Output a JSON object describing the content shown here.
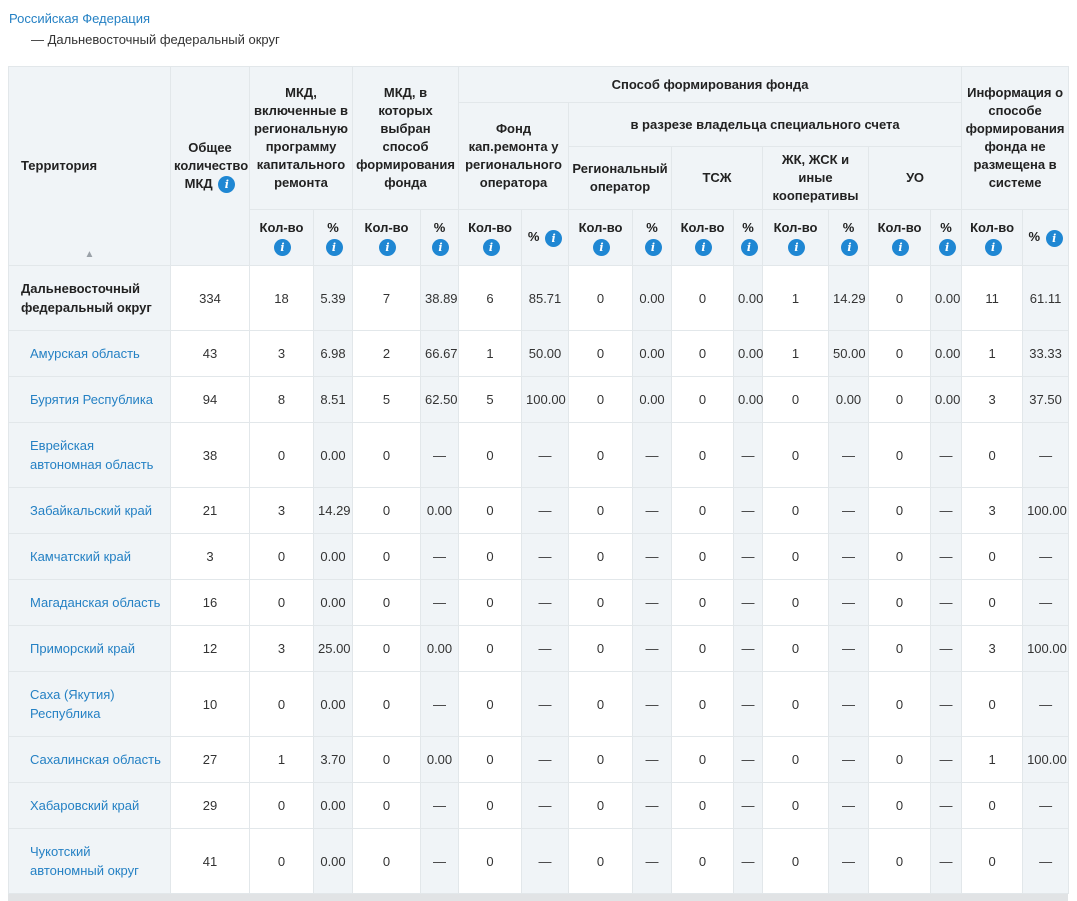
{
  "breadcrumb": {
    "root_link": "Российская Федерация",
    "current": "— Дальневосточный федеральный округ"
  },
  "colors": {
    "link_blue": "#2581c4",
    "info_icon_blue": "#1f87d3",
    "header_bg": "#f0f4f7",
    "tint_bg": "#f0f4f7",
    "border": "#e2e7ea"
  },
  "icons": {
    "info": "i",
    "sort_asc": "▲"
  },
  "table": {
    "headers": {
      "territory": "Территория",
      "total_mkd": "Общее количество МКД",
      "included_program": "МКД, включенные в региональную программу капитального ремонта",
      "method_chosen": "МКД, в которых выбран способ формирования фонда",
      "method_group": "Способ формирования фонда",
      "fund_regional_operator": "Фонд кап.ремонта у регионального оператора",
      "special_account_group": "в разрезе владельца специального счета",
      "regional_operator": "Региональный оператор",
      "tsj": "ТСЖ",
      "cooperatives": "ЖК, ЖСК и иные кооперативы",
      "uo": "УО",
      "no_info": "Информация о способе формирования фонда не размещена в системе",
      "count_label": "Кол-во",
      "percent_label": "%"
    },
    "rows": [
      {
        "territory": "Дальневосточный федеральный округ",
        "bold": true,
        "values": [
          "334",
          "18",
          "5.39",
          "7",
          "38.89",
          "6",
          "85.71",
          "0",
          "0.00",
          "0",
          "0.00",
          "1",
          "14.29",
          "0",
          "0.00",
          "11",
          "61.11"
        ]
      },
      {
        "territory": "Амурская область",
        "bold": false,
        "values": [
          "43",
          "3",
          "6.98",
          "2",
          "66.67",
          "1",
          "50.00",
          "0",
          "0.00",
          "0",
          "0.00",
          "1",
          "50.00",
          "0",
          "0.00",
          "1",
          "33.33"
        ]
      },
      {
        "territory": "Бурятия Республика",
        "bold": false,
        "values": [
          "94",
          "8",
          "8.51",
          "5",
          "62.50",
          "5",
          "100.00",
          "0",
          "0.00",
          "0",
          "0.00",
          "0",
          "0.00",
          "0",
          "0.00",
          "3",
          "37.50"
        ]
      },
      {
        "territory": "Еврейская автономная область",
        "bold": false,
        "values": [
          "38",
          "0",
          "0.00",
          "0",
          "—",
          "0",
          "—",
          "0",
          "—",
          "0",
          "—",
          "0",
          "—",
          "0",
          "—",
          "0",
          "—"
        ]
      },
      {
        "territory": "Забайкальский край",
        "bold": false,
        "values": [
          "21",
          "3",
          "14.29",
          "0",
          "0.00",
          "0",
          "—",
          "0",
          "—",
          "0",
          "—",
          "0",
          "—",
          "0",
          "—",
          "3",
          "100.00"
        ]
      },
      {
        "territory": "Камчатский край",
        "bold": false,
        "values": [
          "3",
          "0",
          "0.00",
          "0",
          "—",
          "0",
          "—",
          "0",
          "—",
          "0",
          "—",
          "0",
          "—",
          "0",
          "—",
          "0",
          "—"
        ]
      },
      {
        "territory": "Магаданская область",
        "bold": false,
        "values": [
          "16",
          "0",
          "0.00",
          "0",
          "—",
          "0",
          "—",
          "0",
          "—",
          "0",
          "—",
          "0",
          "—",
          "0",
          "—",
          "0",
          "—"
        ]
      },
      {
        "territory": "Приморский край",
        "bold": false,
        "values": [
          "12",
          "3",
          "25.00",
          "0",
          "0.00",
          "0",
          "—",
          "0",
          "—",
          "0",
          "—",
          "0",
          "—",
          "0",
          "—",
          "3",
          "100.00"
        ]
      },
      {
        "territory": "Саха (Якутия) Республика",
        "bold": false,
        "values": [
          "10",
          "0",
          "0.00",
          "0",
          "—",
          "0",
          "—",
          "0",
          "—",
          "0",
          "—",
          "0",
          "—",
          "0",
          "—",
          "0",
          "—"
        ]
      },
      {
        "territory": "Сахалинская область",
        "bold": false,
        "values": [
          "27",
          "1",
          "3.70",
          "0",
          "0.00",
          "0",
          "—",
          "0",
          "—",
          "0",
          "—",
          "0",
          "—",
          "0",
          "—",
          "1",
          "100.00"
        ]
      },
      {
        "territory": "Хабаровский край",
        "bold": false,
        "values": [
          "29",
          "0",
          "0.00",
          "0",
          "—",
          "0",
          "—",
          "0",
          "—",
          "0",
          "—",
          "0",
          "—",
          "0",
          "—",
          "0",
          "—"
        ]
      },
      {
        "territory": "Чукотский автономный округ",
        "bold": false,
        "values": [
          "41",
          "0",
          "0.00",
          "0",
          "—",
          "0",
          "—",
          "0",
          "—",
          "0",
          "—",
          "0",
          "—",
          "0",
          "—",
          "0",
          "—"
        ]
      }
    ]
  }
}
